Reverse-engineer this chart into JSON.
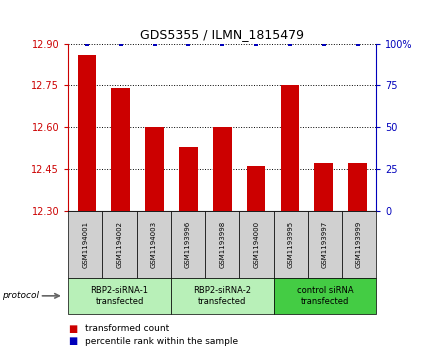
{
  "title": "GDS5355 / ILMN_1815479",
  "samples": [
    "GSM1194001",
    "GSM1194002",
    "GSM1194003",
    "GSM1193996",
    "GSM1193998",
    "GSM1194000",
    "GSM1193995",
    "GSM1193997",
    "GSM1193999"
  ],
  "transformed_counts": [
    12.86,
    12.74,
    12.6,
    12.53,
    12.6,
    12.46,
    12.75,
    12.47,
    12.47
  ],
  "percentile_ranks": [
    100,
    100,
    100,
    100,
    100,
    100,
    100,
    100,
    100
  ],
  "ylim_left": [
    12.3,
    12.9
  ],
  "ylim_right": [
    0,
    100
  ],
  "yticks_left": [
    12.3,
    12.45,
    12.6,
    12.75,
    12.9
  ],
  "yticks_right": [
    0,
    25,
    50,
    75,
    100
  ],
  "ytick_labels_right": [
    "0",
    "25",
    "50",
    "75",
    "100%"
  ],
  "groups": [
    {
      "label": "RBP2-siRNA-1\ntransfected",
      "indices": [
        0,
        1,
        2
      ],
      "color": "#b8f0b8"
    },
    {
      "label": "RBP2-siRNA-2\ntransfected",
      "indices": [
        3,
        4,
        5
      ],
      "color": "#b8f0b8"
    },
    {
      "label": "control siRNA\ntransfected",
      "indices": [
        6,
        7,
        8
      ],
      "color": "#44cc44"
    }
  ],
  "bar_color": "#cc0000",
  "blue_marker_color": "#0000bb",
  "left_axis_color": "#cc0000",
  "right_axis_color": "#0000bb",
  "sample_box_color": "#d0d0d0",
  "legend_red_label": "transformed count",
  "legend_blue_label": "percentile rank within the sample",
  "protocol_label": "protocol"
}
